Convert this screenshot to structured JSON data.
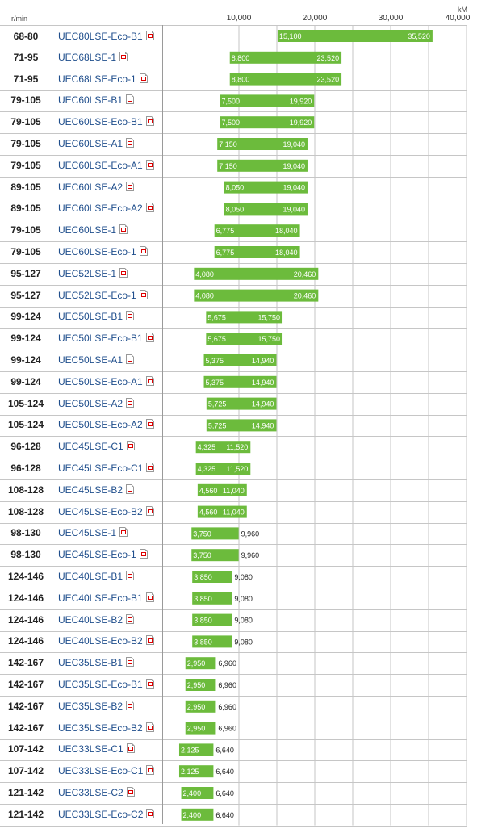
{
  "axis": {
    "left_unit": "r/min",
    "right_unit": "kM",
    "ticks": [
      "10,000",
      "20,000",
      "30,000",
      "40,000"
    ]
  },
  "colors": {
    "bar": "#6cbb3c",
    "grid": "#c6c6c6",
    "link": "#1f4e8c"
  },
  "chart_data": {
    "type": "bar",
    "orientation": "horizontal-range",
    "xlim": [
      0,
      40000
    ],
    "x_unit": "kM",
    "y_unit": "r/min",
    "grid": true,
    "rows": [
      {
        "speed": "68-80",
        "model": "UEC80LSE-Eco-B1",
        "low": 15100,
        "high": 35520,
        "low_label": "15,100",
        "high_label": "35,520"
      },
      {
        "speed": "71-95",
        "model": "UEC68LSE-1",
        "low": 8800,
        "high": 23520,
        "low_label": "8,800",
        "high_label": "23,520"
      },
      {
        "speed": "71-95",
        "model": "UEC68LSE-Eco-1",
        "low": 8800,
        "high": 23520,
        "low_label": "8,800",
        "high_label": "23,520"
      },
      {
        "speed": "79-105",
        "model": "UEC60LSE-B1",
        "low": 7500,
        "high": 19920,
        "low_label": "7,500",
        "high_label": "19,920"
      },
      {
        "speed": "79-105",
        "model": "UEC60LSE-Eco-B1",
        "low": 7500,
        "high": 19920,
        "low_label": "7,500",
        "high_label": "19,920"
      },
      {
        "speed": "79-105",
        "model": "UEC60LSE-A1",
        "low": 7150,
        "high": 19040,
        "low_label": "7,150",
        "high_label": "19,040"
      },
      {
        "speed": "79-105",
        "model": "UEC60LSE-Eco-A1",
        "low": 7150,
        "high": 19040,
        "low_label": "7,150",
        "high_label": "19,040"
      },
      {
        "speed": "89-105",
        "model": "UEC60LSE-A2",
        "low": 8050,
        "high": 19040,
        "low_label": "8,050",
        "high_label": "19,040"
      },
      {
        "speed": "89-105",
        "model": "UEC60LSE-Eco-A2",
        "low": 8050,
        "high": 19040,
        "low_label": "8,050",
        "high_label": "19,040"
      },
      {
        "speed": "79-105",
        "model": "UEC60LSE-1",
        "low": 6775,
        "high": 18040,
        "low_label": "6,775",
        "high_label": "18,040"
      },
      {
        "speed": "79-105",
        "model": "UEC60LSE-Eco-1",
        "low": 6775,
        "high": 18040,
        "low_label": "6,775",
        "high_label": "18,040"
      },
      {
        "speed": "95-127",
        "model": "UEC52LSE-1",
        "low": 4080,
        "high": 20460,
        "low_label": "4,080",
        "high_label": "20,460"
      },
      {
        "speed": "95-127",
        "model": "UEC52LSE-Eco-1",
        "low": 4080,
        "high": 20460,
        "low_label": "4,080",
        "high_label": "20,460"
      },
      {
        "speed": "99-124",
        "model": "UEC50LSE-B1",
        "low": 5675,
        "high": 15750,
        "low_label": "5,675",
        "high_label": "15,750"
      },
      {
        "speed": "99-124",
        "model": "UEC50LSE-Eco-B1",
        "low": 5675,
        "high": 15750,
        "low_label": "5,675",
        "high_label": "15,750"
      },
      {
        "speed": "99-124",
        "model": "UEC50LSE-A1",
        "low": 5375,
        "high": 14940,
        "low_label": "5,375",
        "high_label": "14,940"
      },
      {
        "speed": "99-124",
        "model": "UEC50LSE-Eco-A1",
        "low": 5375,
        "high": 14940,
        "low_label": "5,375",
        "high_label": "14,940"
      },
      {
        "speed": "105-124",
        "model": "UEC50LSE-A2",
        "low": 5725,
        "high": 14940,
        "low_label": "5,725",
        "high_label": "14,940"
      },
      {
        "speed": "105-124",
        "model": "UEC50LSE-Eco-A2",
        "low": 5725,
        "high": 14940,
        "low_label": "5,725",
        "high_label": "14,940"
      },
      {
        "speed": "96-128",
        "model": "UEC45LSE-C1",
        "low": 4325,
        "high": 11520,
        "low_label": "4,325",
        "high_label": "11,520"
      },
      {
        "speed": "96-128",
        "model": "UEC45LSE-Eco-C1",
        "low": 4325,
        "high": 11520,
        "low_label": "4,325",
        "high_label": "11,520"
      },
      {
        "speed": "108-128",
        "model": "UEC45LSE-B2",
        "low": 4560,
        "high": 11040,
        "low_label": "4,560",
        "high_label": "11,040"
      },
      {
        "speed": "108-128",
        "model": "UEC45LSE-Eco-B2",
        "low": 4560,
        "high": 11040,
        "low_label": "4,560",
        "high_label": "11,040"
      },
      {
        "speed": "98-130",
        "model": "UEC45LSE-1",
        "low": 3750,
        "high": 9960,
        "low_label": "3,750",
        "high_label": "9,960"
      },
      {
        "speed": "98-130",
        "model": "UEC45LSE-Eco-1",
        "low": 3750,
        "high": 9960,
        "low_label": "3,750",
        "high_label": "9,960"
      },
      {
        "speed": "124-146",
        "model": "UEC40LSE-B1",
        "low": 3850,
        "high": 9080,
        "low_label": "3,850",
        "high_label": "9,080"
      },
      {
        "speed": "124-146",
        "model": "UEC40LSE-Eco-B1",
        "low": 3850,
        "high": 9080,
        "low_label": "3,850",
        "high_label": "9,080"
      },
      {
        "speed": "124-146",
        "model": "UEC40LSE-B2",
        "low": 3850,
        "high": 9080,
        "low_label": "3,850",
        "high_label": "9,080"
      },
      {
        "speed": "124-146",
        "model": "UEC40LSE-Eco-B2",
        "low": 3850,
        "high": 9080,
        "low_label": "3,850",
        "high_label": "9,080"
      },
      {
        "speed": "142-167",
        "model": "UEC35LSE-B1",
        "low": 2950,
        "high": 6960,
        "low_label": "2,950",
        "high_label": "6,960"
      },
      {
        "speed": "142-167",
        "model": "UEC35LSE-Eco-B1",
        "low": 2950,
        "high": 6960,
        "low_label": "2,950",
        "high_label": "6,960"
      },
      {
        "speed": "142-167",
        "model": "UEC35LSE-B2",
        "low": 2950,
        "high": 6960,
        "low_label": "2,950",
        "high_label": "6,960"
      },
      {
        "speed": "142-167",
        "model": "UEC35LSE-Eco-B2",
        "low": 2950,
        "high": 6960,
        "low_label": "2,950",
        "high_label": "6,960"
      },
      {
        "speed": "107-142",
        "model": "UEC33LSE-C1",
        "low": 2125,
        "high": 6640,
        "low_label": "2,125",
        "high_label": "6,640"
      },
      {
        "speed": "107-142",
        "model": "UEC33LSE-Eco-C1",
        "low": 2125,
        "high": 6640,
        "low_label": "2,125",
        "high_label": "6,640"
      },
      {
        "speed": "121-142",
        "model": "UEC33LSE-C2",
        "low": 2400,
        "high": 6640,
        "low_label": "2,400",
        "high_label": "6,640"
      },
      {
        "speed": "121-142",
        "model": "UEC33LSE-Eco-C2",
        "low": 2400,
        "high": 6640,
        "low_label": "2,400",
        "high_label": "6,640"
      }
    ]
  }
}
